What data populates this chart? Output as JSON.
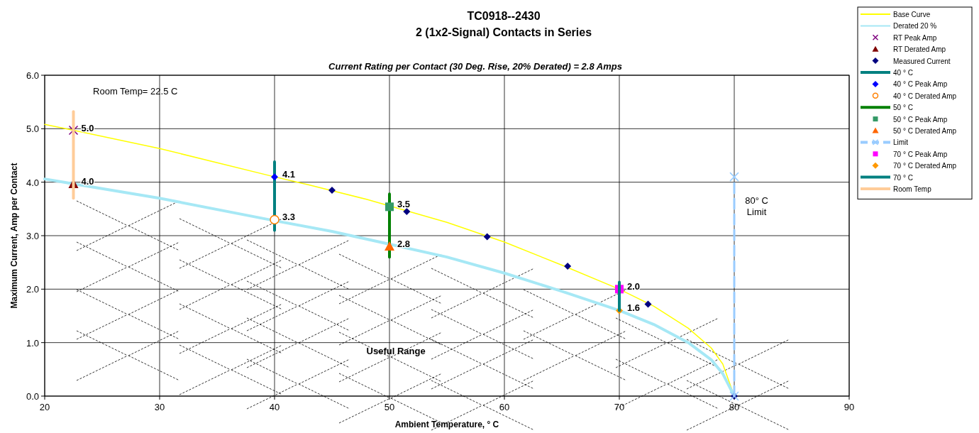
{
  "chart_data": {
    "type": "line",
    "title": "TC0918--2430\n2 (1x2-Signal) Contacts in Series",
    "subtitle": "Current Rating per Contact (30 Deg. Rise, 20% Derated)  = 2.8 Amps",
    "xlabel": "Ambient Temperature,  ° C",
    "ylabel": "Maximum Current, Amp per Contact",
    "xlim": [
      20,
      90
    ],
    "xticks": [
      20,
      30,
      40,
      50,
      60,
      70,
      80,
      90
    ],
    "ylim": [
      0,
      6
    ],
    "yticks": [
      {
        "value": 0,
        "label": "0.0"
      },
      {
        "value": 1,
        "label": "1.0"
      },
      {
        "value": 2,
        "label": "2.0"
      },
      {
        "value": 3,
        "label": "3.0"
      },
      {
        "value": 4,
        "label": "4.0"
      },
      {
        "value": 5,
        "label": "5.0"
      },
      {
        "value": 6,
        "label": "6.0"
      }
    ],
    "grid": true,
    "legend": "top right",
    "annotations": [
      "Room Temp= 22.5 C",
      "80° C Limit",
      "Useful Range"
    ],
    "series": [
      {
        "name": "Base Curve",
        "color": "#ffff00",
        "marker": "none",
        "x": [
          20,
          22.5,
          30,
          40,
          43,
          48,
          55,
          60,
          65,
          70,
          73,
          76,
          78,
          79,
          80
        ],
        "values": [
          5.08,
          4.97,
          4.63,
          4.1,
          3.95,
          3.68,
          3.25,
          2.88,
          2.45,
          2.0,
          1.68,
          1.27,
          0.9,
          0.6,
          0
        ]
      },
      {
        "name": "Derated 20 %",
        "color": "#a6e8f5",
        "marker": "none",
        "x": [
          20,
          22.5,
          30,
          40,
          45,
          50,
          55,
          60,
          65,
          70,
          73,
          76,
          78,
          79,
          80
        ],
        "values": [
          4.06,
          3.97,
          3.7,
          3.28,
          3.08,
          2.84,
          2.6,
          2.3,
          1.96,
          1.6,
          1.34,
          1.0,
          0.68,
          0.42,
          0
        ]
      },
      {
        "name": "RT Peak Amp",
        "type": "scatter",
        "color": "#800080",
        "marker": "cross",
        "x": [
          22.5
        ],
        "values": [
          4.97
        ],
        "value_labels": [
          "5.0"
        ]
      },
      {
        "name": "RT Derated Amp",
        "type": "scatter",
        "color": "#800000",
        "marker": "triangle",
        "x": [
          22.5
        ],
        "values": [
          3.97
        ],
        "value_labels": [
          "4.0"
        ]
      },
      {
        "name": "Measured Current",
        "type": "scatter",
        "color": "#000080",
        "marker": "diamond",
        "x": [
          45,
          51.5,
          58.5,
          65.5,
          72.5,
          80
        ],
        "values": [
          3.85,
          3.45,
          2.98,
          2.43,
          1.72,
          0
        ]
      },
      {
        "name": "40 ° C",
        "color": "#008080",
        "marker": "none",
        "x": [
          40,
          40
        ],
        "values": [
          3.1,
          4.38
        ]
      },
      {
        "name": "40  ° C Peak Amp",
        "type": "scatter",
        "color": "#0000ff",
        "marker": "diamond",
        "x": [
          40
        ],
        "values": [
          4.1
        ],
        "value_labels": [
          "4.1"
        ]
      },
      {
        "name": "40  ° C Derated Amp",
        "type": "scatter",
        "color": "#ff8000",
        "marker": "circle",
        "x": [
          40
        ],
        "values": [
          3.3
        ],
        "value_labels": [
          "3.3"
        ]
      },
      {
        "name": "50  ° C",
        "color": "#008000",
        "marker": "none",
        "x": [
          50,
          50
        ],
        "values": [
          2.6,
          3.78
        ]
      },
      {
        "name": "50  ° C Peak Amp",
        "type": "scatter",
        "color": "#339966",
        "marker": "square",
        "x": [
          50
        ],
        "values": [
          3.54
        ],
        "value_labels": [
          "3.5"
        ]
      },
      {
        "name": "50  ° C Derated Amp",
        "type": "scatter",
        "color": "#ff6600",
        "marker": "triangle",
        "x": [
          50
        ],
        "values": [
          2.8
        ],
        "value_labels": [
          "2.8"
        ]
      },
      {
        "name": "Limit",
        "color": "#99ccff",
        "marker": "cross",
        "line_style": "dashed",
        "x": [
          80,
          80
        ],
        "values": [
          0,
          4.1
        ]
      },
      {
        "name": "70  ° C Peak Amp",
        "type": "scatter",
        "color": "#ff00ff",
        "marker": "square",
        "x": [
          70
        ],
        "values": [
          2.0
        ],
        "value_labels": [
          "2.0"
        ]
      },
      {
        "name": "70  ° C Derated Amp",
        "type": "scatter",
        "color": "#ff9900",
        "marker": "diamond",
        "x": [
          70
        ],
        "values": [
          1.6
        ],
        "value_labels": [
          "1.6"
        ]
      },
      {
        "name": "70  ° C",
        "color": "#008080",
        "marker": "none",
        "x": [
          70,
          70
        ],
        "values": [
          1.6,
          2.13
        ]
      },
      {
        "name": "Room Temp",
        "color": "#ffcc99",
        "marker": "none",
        "x": [
          22.5,
          22.5
        ],
        "values": [
          3.7,
          5.32
        ]
      }
    ]
  }
}
